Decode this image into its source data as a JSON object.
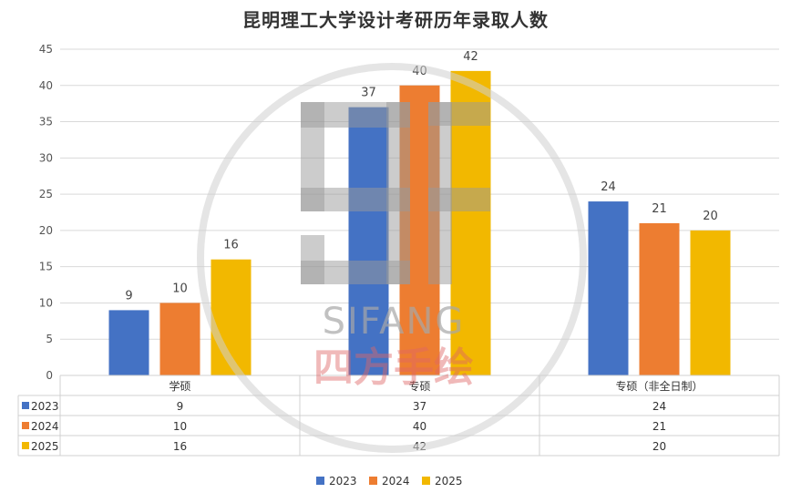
{
  "chart_data": {
    "type": "bar",
    "title": "昆明理工大学设计考研历年录取人数",
    "categories": [
      "学硕",
      "专硕",
      "专硕（非全日制）"
    ],
    "series": [
      {
        "name": "2023",
        "values": [
          9,
          37,
          24
        ],
        "color": "#4472C4"
      },
      {
        "name": "2024",
        "values": [
          10,
          40,
          21
        ],
        "color": "#ED7D31"
      },
      {
        "name": "2025",
        "values": [
          16,
          42,
          20
        ],
        "color": "#F2B800"
      }
    ],
    "ylim": [
      0,
      45
    ],
    "yticks": [
      0,
      5,
      10,
      15,
      20,
      25,
      30,
      35,
      40,
      45
    ],
    "grid": true,
    "legend": "bottom",
    "data_table": true
  },
  "watermark": {
    "latin": "SIFANG",
    "chinese": "四方手绘"
  }
}
